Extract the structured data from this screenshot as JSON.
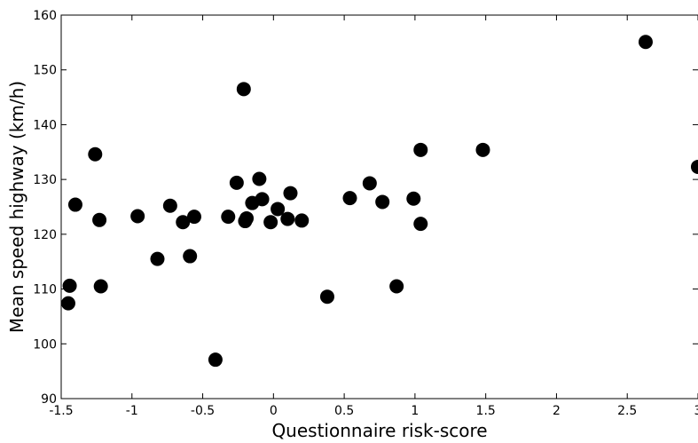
{
  "chart_data": {
    "type": "scatter",
    "xlabel": "Questionnaire risk-score",
    "ylabel": "Mean speed highway (km/h)",
    "xlim": [
      -1.5,
      3
    ],
    "ylim": [
      90,
      160
    ],
    "x_ticks": [
      "-1.5",
      "-1",
      "-0.5",
      "0",
      "0.5",
      "1",
      "1.5",
      "2",
      "2.5",
      "3"
    ],
    "y_ticks": [
      "90",
      "100",
      "110",
      "120",
      "130",
      "140",
      "150",
      "160"
    ],
    "grid": false,
    "marker_color": "#000000",
    "points": [
      {
        "x": -1.44,
        "y": 110.6
      },
      {
        "x": -1.45,
        "y": 107.4
      },
      {
        "x": -1.4,
        "y": 125.4
      },
      {
        "x": -1.26,
        "y": 134.6
      },
      {
        "x": -1.23,
        "y": 122.6
      },
      {
        "x": -1.22,
        "y": 110.5
      },
      {
        "x": -0.96,
        "y": 123.3
      },
      {
        "x": -0.82,
        "y": 115.5
      },
      {
        "x": -0.73,
        "y": 125.2
      },
      {
        "x": -0.64,
        "y": 122.2
      },
      {
        "x": -0.59,
        "y": 116.0
      },
      {
        "x": -0.56,
        "y": 123.2
      },
      {
        "x": -0.41,
        "y": 97.1
      },
      {
        "x": -0.32,
        "y": 123.2
      },
      {
        "x": -0.26,
        "y": 129.4
      },
      {
        "x": -0.21,
        "y": 146.5
      },
      {
        "x": -0.2,
        "y": 122.4
      },
      {
        "x": -0.19,
        "y": 122.9
      },
      {
        "x": -0.15,
        "y": 125.7
      },
      {
        "x": -0.1,
        "y": 130.1
      },
      {
        "x": -0.08,
        "y": 126.4
      },
      {
        "x": -0.02,
        "y": 122.2
      },
      {
        "x": 0.03,
        "y": 124.6
      },
      {
        "x": 0.1,
        "y": 122.8
      },
      {
        "x": 0.12,
        "y": 127.5
      },
      {
        "x": 0.2,
        "y": 122.5
      },
      {
        "x": 0.38,
        "y": 108.6
      },
      {
        "x": 0.54,
        "y": 126.6
      },
      {
        "x": 0.68,
        "y": 129.3
      },
      {
        "x": 0.77,
        "y": 125.9
      },
      {
        "x": 0.87,
        "y": 110.5
      },
      {
        "x": 0.99,
        "y": 126.5
      },
      {
        "x": 1.04,
        "y": 135.4
      },
      {
        "x": 1.04,
        "y": 121.9
      },
      {
        "x": 1.48,
        "y": 135.4
      },
      {
        "x": 2.63,
        "y": 155.1
      },
      {
        "x": 3.0,
        "y": 132.3
      }
    ]
  }
}
